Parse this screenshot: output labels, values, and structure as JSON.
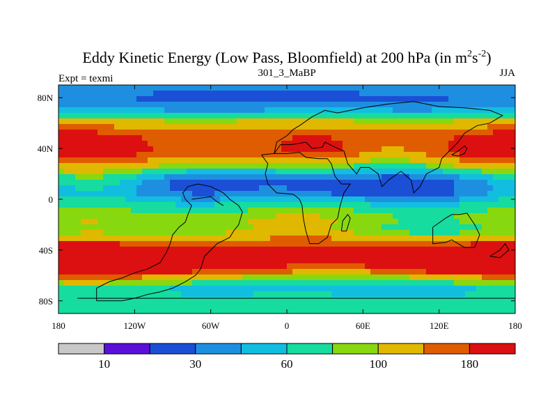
{
  "chart_data": {
    "type": "heatmap",
    "title": "Eddy Kinetic Energy (Low Pass, Bloomfield) at 200 hPa (in m",
    "title_unit_base_2": "2",
    "title_unit_mid": "s",
    "title_unit_exp_2": "-2",
    "title_close": ")",
    "subtitle_left": "Expt = texmi",
    "subtitle_center": "301_3_MaBP",
    "subtitle_right": "JJA",
    "x_range": [
      -180,
      180
    ],
    "y_range": [
      -90,
      90
    ],
    "x_ticks": [
      {
        "value": -180,
        "label": "180"
      },
      {
        "value": -120,
        "label": "120W"
      },
      {
        "value": -60,
        "label": "60W"
      },
      {
        "value": 0,
        "label": "0"
      },
      {
        "value": 60,
        "label": "60E"
      },
      {
        "value": 120,
        "label": "120E"
      },
      {
        "value": 180,
        "label": "180"
      }
    ],
    "y_ticks": [
      {
        "value": 80,
        "label": "80N"
      },
      {
        "value": 40,
        "label": "40N"
      },
      {
        "value": 0,
        "label": "0"
      },
      {
        "value": -40,
        "label": "40S"
      },
      {
        "value": -80,
        "label": "80S"
      }
    ],
    "levels": [
      0,
      10,
      20,
      30,
      45,
      60,
      80,
      100,
      140,
      180,
      230
    ],
    "colorbar": {
      "colors": [
        "#c8c8c8",
        "#5a10d8",
        "#1a4fd6",
        "#1e8fe0",
        "#12bee0",
        "#16dca0",
        "#88d810",
        "#e0b800",
        "#e05c00",
        "#dc1010"
      ],
      "labels": [
        {
          "after_box": 1,
          "label": "10"
        },
        {
          "after_box": 3,
          "label": "30"
        },
        {
          "after_box": 5,
          "label": "60"
        },
        {
          "after_box": 7,
          "label": "100"
        },
        {
          "after_box": 9,
          "label": "180"
        }
      ]
    },
    "field_blobs": [
      {
        "lon": -120,
        "lat": 40,
        "rx": 100,
        "ry": 17,
        "amp": 110
      },
      {
        "lon": 150,
        "lat": 40,
        "rx": 70,
        "ry": 15,
        "amp": 100
      },
      {
        "lon": 30,
        "lat": 40,
        "rx": 45,
        "ry": 13,
        "amp": 85
      },
      {
        "lon": -20,
        "lat": 45,
        "rx": 60,
        "ry": 15,
        "amp": 40
      },
      {
        "lon": 80,
        "lat": 52,
        "rx": 50,
        "ry": 12,
        "amp": 25
      },
      {
        "lon": -130,
        "lat": -50,
        "rx": 110,
        "ry": 14,
        "amp": 150
      },
      {
        "lon": 150,
        "lat": -48,
        "rx": 80,
        "ry": 12,
        "amp": 110
      },
      {
        "lon": 40,
        "lat": -42,
        "rx": 100,
        "ry": 15,
        "amp": 60
      },
      {
        "lon": -60,
        "lat": -25,
        "rx": 140,
        "ry": 12,
        "amp": 30
      },
      {
        "lon": -150,
        "lat": 15,
        "rx": 40,
        "ry": 10,
        "amp": 20
      },
      {
        "lon": 30,
        "lat": 8,
        "rx": 30,
        "ry": 8,
        "amp": -15
      },
      {
        "lon": 100,
        "lat": 0,
        "rx": 45,
        "ry": 8,
        "amp": -12
      },
      {
        "lon": 0,
        "lat": 10,
        "rx": 80,
        "ry": 12,
        "amp": -10
      },
      {
        "lon": -20,
        "lat": 80,
        "rx": 80,
        "ry": 12,
        "amp": -10
      }
    ],
    "field_profile": [
      {
        "lat": 90,
        "value": 40
      },
      {
        "lat": 80,
        "value": 30
      },
      {
        "lat": 70,
        "value": 45
      },
      {
        "lat": 60,
        "value": 85
      },
      {
        "lat": 52,
        "value": 95
      },
      {
        "lat": 45,
        "value": 65
      },
      {
        "lat": 35,
        "value": 60
      },
      {
        "lat": 25,
        "value": 42
      },
      {
        "lat": 15,
        "value": 28
      },
      {
        "lat": 5,
        "value": 40
      },
      {
        "lat": -5,
        "value": 70
      },
      {
        "lat": -15,
        "value": 85
      },
      {
        "lat": -25,
        "value": 55
      },
      {
        "lat": -35,
        "value": 100
      },
      {
        "lat": -45,
        "value": 120
      },
      {
        "lat": -55,
        "value": 100
      },
      {
        "lat": -62,
        "value": 55
      },
      {
        "lat": -70,
        "value": 45
      },
      {
        "lat": -80,
        "value": 70
      },
      {
        "lat": -90,
        "value": 60
      }
    ],
    "coastlines": [
      [
        [
          -150,
          -80
        ],
        [
          -150,
          -70
        ],
        [
          -140,
          -65
        ],
        [
          -130,
          -62
        ],
        [
          -120,
          -58
        ],
        [
          -110,
          -55
        ],
        [
          -100,
          -50
        ],
        [
          -95,
          -42
        ],
        [
          -92,
          -35
        ],
        [
          -90,
          -28
        ],
        [
          -85,
          -22
        ],
        [
          -80,
          -18
        ],
        [
          -78,
          -12
        ],
        [
          -75,
          -5
        ],
        [
          -80,
          0
        ],
        [
          -82,
          5
        ],
        [
          -78,
          10
        ],
        [
          -70,
          12
        ],
        [
          -60,
          10
        ],
        [
          -50,
          5
        ],
        [
          -45,
          0
        ],
        [
          -38,
          -5
        ],
        [
          -35,
          -10
        ],
        [
          -38,
          -20
        ],
        [
          -42,
          -25
        ],
        [
          -45,
          -30
        ],
        [
          -55,
          -35
        ],
        [
          -60,
          -40
        ],
        [
          -65,
          -45
        ],
        [
          -68,
          -55
        ],
        [
          -72,
          -60
        ],
        [
          -80,
          -65
        ],
        [
          -90,
          -70
        ],
        [
          -100,
          -73
        ],
        [
          -110,
          -75
        ],
        [
          -120,
          -78
        ],
        [
          -130,
          -80
        ],
        [
          -150,
          -80
        ]
      ],
      [
        [
          -20,
          35
        ],
        [
          -15,
          28
        ],
        [
          -17,
          20
        ],
        [
          -15,
          12
        ],
        [
          -8,
          5
        ],
        [
          5,
          4
        ],
        [
          10,
          0
        ],
        [
          12,
          -5
        ],
        [
          13,
          -15
        ],
        [
          15,
          -25
        ],
        [
          18,
          -35
        ],
        [
          25,
          -35
        ],
        [
          32,
          -30
        ],
        [
          35,
          -20
        ],
        [
          40,
          -15
        ],
        [
          42,
          -5
        ],
        [
          45,
          5
        ],
        [
          50,
          12
        ],
        [
          43,
          12
        ],
        [
          38,
          18
        ],
        [
          35,
          28
        ],
        [
          32,
          32
        ],
        [
          25,
          32
        ],
        [
          15,
          33
        ],
        [
          10,
          37
        ],
        [
          0,
          36
        ],
        [
          -10,
          36
        ],
        [
          -20,
          35
        ]
      ],
      [
        [
          -10,
          36
        ],
        [
          -8,
          45
        ],
        [
          0,
          50
        ],
        [
          5,
          55
        ],
        [
          10,
          58
        ],
        [
          20,
          65
        ],
        [
          30,
          70
        ],
        [
          40,
          68
        ],
        [
          50,
          70
        ],
        [
          60,
          72
        ],
        [
          80,
          75
        ],
        [
          100,
          77
        ],
        [
          120,
          73
        ],
        [
          140,
          72
        ],
        [
          160,
          70
        ],
        [
          170,
          66
        ],
        [
          160,
          60
        ],
        [
          150,
          58
        ],
        [
          140,
          52
        ],
        [
          135,
          45
        ],
        [
          130,
          40
        ],
        [
          122,
          32
        ],
        [
          120,
          25
        ],
        [
          110,
          20
        ],
        [
          105,
          10
        ],
        [
          100,
          5
        ],
        [
          98,
          15
        ],
        [
          90,
          22
        ],
        [
          80,
          15
        ],
        [
          75,
          10
        ],
        [
          72,
          20
        ],
        [
          65,
          25
        ],
        [
          58,
          25
        ],
        [
          55,
          20
        ],
        [
          48,
          28
        ],
        [
          45,
          38
        ],
        [
          40,
          40
        ],
        [
          30,
          45
        ],
        [
          28,
          41
        ],
        [
          20,
          40
        ],
        [
          15,
          45
        ],
        [
          10,
          44
        ],
        [
          3,
          43
        ],
        [
          -5,
          43
        ],
        [
          -10,
          36
        ]
      ],
      [
        [
          115,
          -22
        ],
        [
          115,
          -35
        ],
        [
          125,
          -34
        ],
        [
          130,
          -32
        ],
        [
          135,
          -35
        ],
        [
          140,
          -38
        ],
        [
          148,
          -38
        ],
        [
          152,
          -28
        ],
        [
          148,
          -20
        ],
        [
          142,
          -11
        ],
        [
          136,
          -12
        ],
        [
          130,
          -12
        ],
        [
          125,
          -15
        ],
        [
          118,
          -20
        ],
        [
          115,
          -22
        ]
      ],
      [
        [
          43,
          -25
        ],
        [
          47,
          -25
        ],
        [
          50,
          -15
        ],
        [
          48,
          -12
        ],
        [
          44,
          -17
        ],
        [
          43,
          -25
        ]
      ],
      [
        [
          160,
          -45
        ],
        [
          168,
          -46
        ],
        [
          175,
          -40
        ],
        [
          172,
          -35
        ],
        [
          168,
          -40
        ],
        [
          160,
          -45
        ]
      ],
      [
        [
          130,
          35
        ],
        [
          135,
          34
        ],
        [
          140,
          36
        ],
        [
          142,
          40
        ],
        [
          140,
          42
        ],
        [
          135,
          38
        ],
        [
          130,
          35
        ]
      ],
      [
        [
          -75,
          0
        ],
        [
          -60,
          2
        ],
        [
          -55,
          -2
        ],
        [
          -50,
          -5
        ]
      ],
      [
        [
          -165,
          -78
        ],
        [
          180,
          -78
        ]
      ]
    ]
  }
}
